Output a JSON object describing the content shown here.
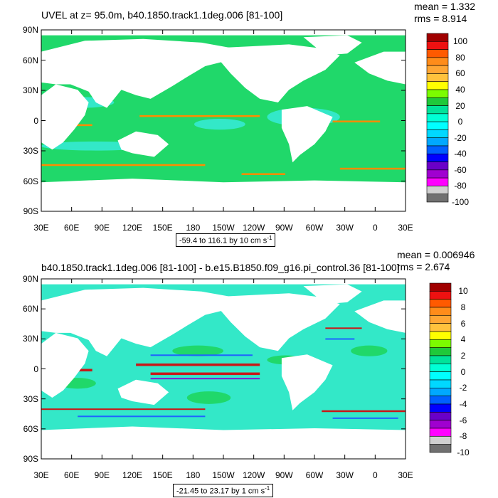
{
  "panels": [
    {
      "title": "UVEL at z=  95.0m, b40.1850.track1.1deg.006 [81-100]",
      "mean_text": "mean = 1.332",
      "rms_text": "rms = 8.914",
      "range_text": "-59.4 to 116.1 by 10 cm s",
      "range_superscript": "-1",
      "lat_labels": [
        "90N",
        "60N",
        "30N",
        "0",
        "30S",
        "60S",
        "90S"
      ],
      "lon_labels": [
        "30E",
        "60E",
        "90E",
        "120E",
        "150E",
        "180",
        "150W",
        "120W",
        "90W",
        "60W",
        "30W",
        "0",
        "30E"
      ],
      "colorbar_labels": [
        "100",
        "80",
        "60",
        "40",
        "20",
        "0",
        "-20",
        "-40",
        "-60",
        "-80",
        "-100"
      ]
    },
    {
      "title": "b40.1850.track1.1deg.006 [81-100] - b.e15.B1850.f09_g16.pi_control.36 [81-100]",
      "mean_text": "mean = 0.006946",
      "rms_text": "rms = 2.674",
      "range_text": "-21.45 to 23.17 by 1 cm s",
      "range_superscript": "-1",
      "lat_labels": [
        "90N",
        "60N",
        "30N",
        "0",
        "30S",
        "60S",
        "90S"
      ],
      "lon_labels": [
        "30E",
        "60E",
        "90E",
        "120E",
        "150E",
        "180",
        "150W",
        "120W",
        "90W",
        "60W",
        "30W",
        "0",
        "30E"
      ],
      "colorbar_labels": [
        "10",
        "8",
        "6",
        "4",
        "2",
        "0",
        "-2",
        "-4",
        "-6",
        "-8",
        "-10"
      ]
    }
  ],
  "colors": {
    "ocean_green": "#20d86a",
    "ocean_cyan": "#33e8c8",
    "band_red": "#c81818",
    "band_orange": "#ff8c00",
    "band_blue": "#1e64ff",
    "band_purple": "#7a1fd0",
    "colorbar": [
      "#a00000",
      "#ee1111",
      "#ff5a00",
      "#ff8c1a",
      "#ffa634",
      "#ffc23d",
      "#ffff00",
      "#7cfc00",
      "#1fc93a",
      "#00e39a",
      "#00ffd5",
      "#00ffff",
      "#00d8ff",
      "#00a8ff",
      "#0060ff",
      "#0000ff",
      "#6a00c8",
      "#a000d0",
      "#ff00ff",
      "#d0d0d0",
      "#707070"
    ]
  }
}
